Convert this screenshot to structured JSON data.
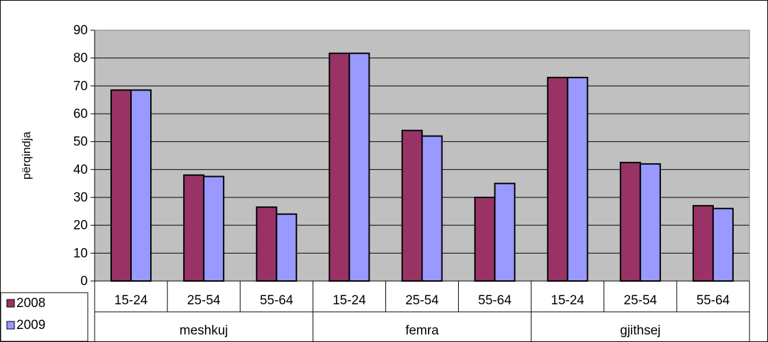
{
  "chart_data": {
    "type": "bar",
    "title": "",
    "xlabel": "",
    "ylabel": "përqindja",
    "ylim": [
      0,
      90
    ],
    "yticks": [
      0,
      10,
      20,
      30,
      40,
      50,
      60,
      70,
      80,
      90
    ],
    "grid": true,
    "legend_position": "bottom-left",
    "groups": [
      {
        "label": "meshkuj",
        "categories": [
          "15-24",
          "25-54",
          "55-64"
        ]
      },
      {
        "label": "femra",
        "categories": [
          "15-24",
          "25-54",
          "55-64"
        ]
      },
      {
        "label": "gjithsej",
        "categories": [
          "15-24",
          "25-54",
          "55-64"
        ]
      }
    ],
    "series": [
      {
        "name": "2008",
        "color": "#993366",
        "values": [
          68.5,
          38,
          26.5,
          81.7,
          54,
          30,
          73,
          42.5,
          27
        ]
      },
      {
        "name": "2009",
        "color": "#9999FF",
        "values": [
          68.5,
          37.5,
          24,
          81.7,
          52,
          35,
          73,
          42,
          26
        ]
      }
    ],
    "plot_background": "#C0C0C0"
  }
}
